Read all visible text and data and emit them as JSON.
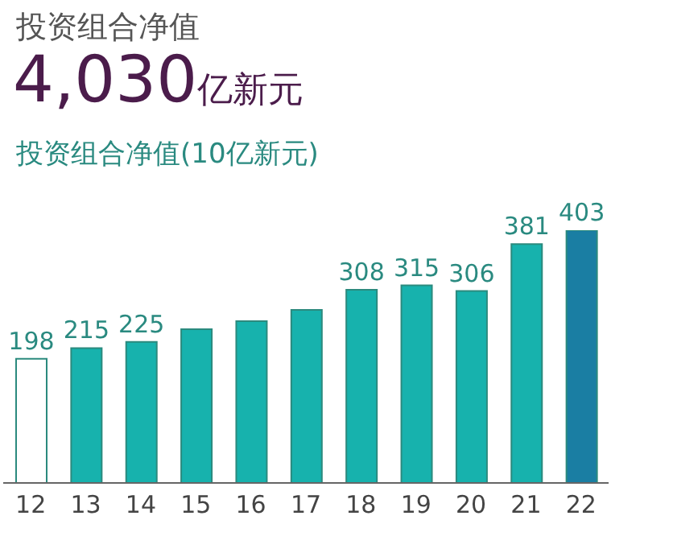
{
  "chart_data": {
    "type": "bar",
    "title": "投资组合净值",
    "subtitle": "4,030亿新元",
    "ylabel": "投资组合净值(10亿新元)",
    "categories": [
      "12",
      "13",
      "14",
      "15",
      "16",
      "17",
      "18",
      "19",
      "20",
      "21",
      "22"
    ],
    "values": [
      198,
      215,
      225,
      245,
      258,
      276,
      308,
      315,
      306,
      381,
      403
    ],
    "colors": [
      "#ffffff",
      "#17b2ad",
      "#17b2ad",
      "#17b2ad",
      "#17b2ad",
      "#17b2ad",
      "#17b2ad",
      "#17b2ad",
      "#17b2ad",
      "#17b2ad",
      "#1a7ea3"
    ],
    "value_labels": [
      "198",
      "215",
      "225",
      null,
      null,
      null,
      "308",
      "315",
      "306",
      "381",
      "403"
    ]
  }
}
